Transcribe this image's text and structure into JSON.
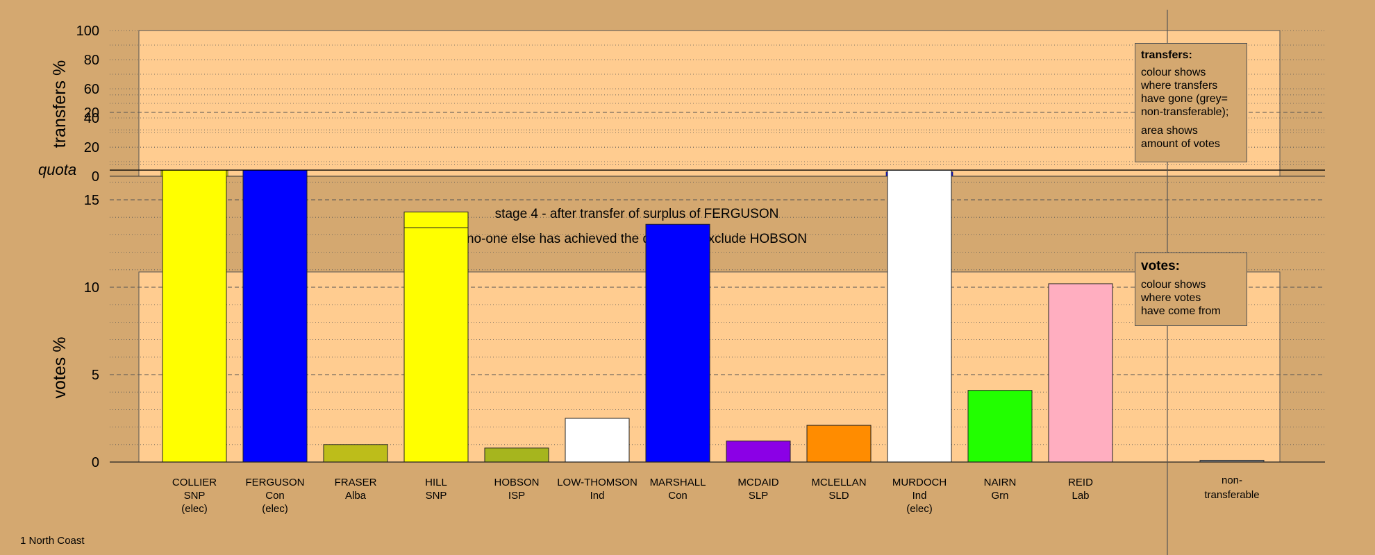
{
  "chart_data": [
    {
      "type": "bar",
      "name": "transfers",
      "ylabel": "transfers %",
      "ylim": [
        0,
        100
      ],
      "yticks": [
        0,
        20,
        40,
        60,
        80,
        100
      ],
      "categories": [
        "COLLIER",
        "FERGUSON",
        "FRASER",
        "HILL",
        "HOBSON",
        "LOW-THOMSON",
        "MARSHALL",
        "MCDAID",
        "MCLELLAN",
        "MURDOCH",
        "NAIRN",
        "REID"
      ],
      "values": [
        4,
        0,
        0,
        0,
        0,
        0,
        0,
        0,
        0,
        3,
        0,
        0
      ],
      "bar_colors": [
        "#ffff00",
        null,
        null,
        null,
        null,
        null,
        null,
        null,
        null,
        "#0000ff",
        null,
        null
      ],
      "grid": true
    },
    {
      "type": "bar",
      "name": "votes",
      "ylabel": "votes %",
      "ylim": [
        0,
        22
      ],
      "yticks": [
        0,
        5,
        10,
        15,
        20
      ],
      "quota": 16.7,
      "quota_label": "quota",
      "grid": true,
      "candidates": [
        {
          "name": "COLLIER",
          "party": "SNP",
          "status": "(elec)",
          "segments": [
            {
              "value": 16.7,
              "color": "#ffff00"
            }
          ]
        },
        {
          "name": "FERGUSON",
          "party": "Con",
          "status": "(elec)",
          "segments": [
            {
              "value": 16.7,
              "color": "#0000ff"
            }
          ]
        },
        {
          "name": "FRASER",
          "party": "Alba",
          "status": "",
          "segments": [
            {
              "value": 1.0,
              "color": "#bdbd1a"
            }
          ]
        },
        {
          "name": "HILL",
          "party": "SNP",
          "status": "",
          "segments": [
            {
              "value": 13.4,
              "color": "#ffff00"
            },
            {
              "value": 0.9,
              "color": "#ffff00"
            }
          ]
        },
        {
          "name": "HOBSON",
          "party": "ISP",
          "status": "",
          "segments": [
            {
              "value": 0.8,
              "color": "#a6b51e"
            }
          ]
        },
        {
          "name": "LOW-THOMSON",
          "party": "Ind",
          "status": "",
          "segments": [
            {
              "value": 2.5,
              "color": "#ffffff"
            }
          ]
        },
        {
          "name": "MARSHALL",
          "party": "Con",
          "status": "",
          "segments": [
            {
              "value": 13.6,
              "color": "#0000ff"
            }
          ]
        },
        {
          "name": "MCDAID",
          "party": "SLP",
          "status": "",
          "segments": [
            {
              "value": 1.2,
              "color": "#8b00e6"
            }
          ]
        },
        {
          "name": "MCLELLAN",
          "party": "SLD",
          "status": "",
          "segments": [
            {
              "value": 2.1,
              "color": "#ff8c00"
            }
          ]
        },
        {
          "name": "MURDOCH",
          "party": "Ind",
          "status": "(elec)",
          "segments": [
            {
              "value": 16.7,
              "color": "#ffffff"
            }
          ]
        },
        {
          "name": "NAIRN",
          "party": "Grn",
          "status": "",
          "segments": [
            {
              "value": 4.1,
              "color": "#22ff00"
            }
          ]
        },
        {
          "name": "REID",
          "party": "Lab",
          "status": "",
          "segments": [
            {
              "value": 10.2,
              "color": "#ffaec0"
            }
          ]
        }
      ],
      "non_transferable": {
        "label_line1": "non-",
        "label_line2": "transferable",
        "value": 0.1,
        "color": "#888888"
      }
    }
  ],
  "stage_title": "stage 4 - after transfer of surplus of FERGUSON",
  "stage_subtitle": "no-one else has achieved the quota, so exclude HOBSON",
  "transfers_legend": {
    "title": "transfers:",
    "lines1": [
      "colour shows",
      "where transfers",
      "have gone (grey=",
      "non-transferable);"
    ],
    "lines2": [
      "area shows",
      "amount of votes"
    ]
  },
  "votes_legend": {
    "title": "votes:",
    "lines": [
      "colour shows",
      "where votes",
      "have come from"
    ]
  },
  "footer": "1 North Coast",
  "colors": {
    "background": "#d4a870",
    "plot_area": "#ffcc90",
    "quota_line": "#000000"
  }
}
